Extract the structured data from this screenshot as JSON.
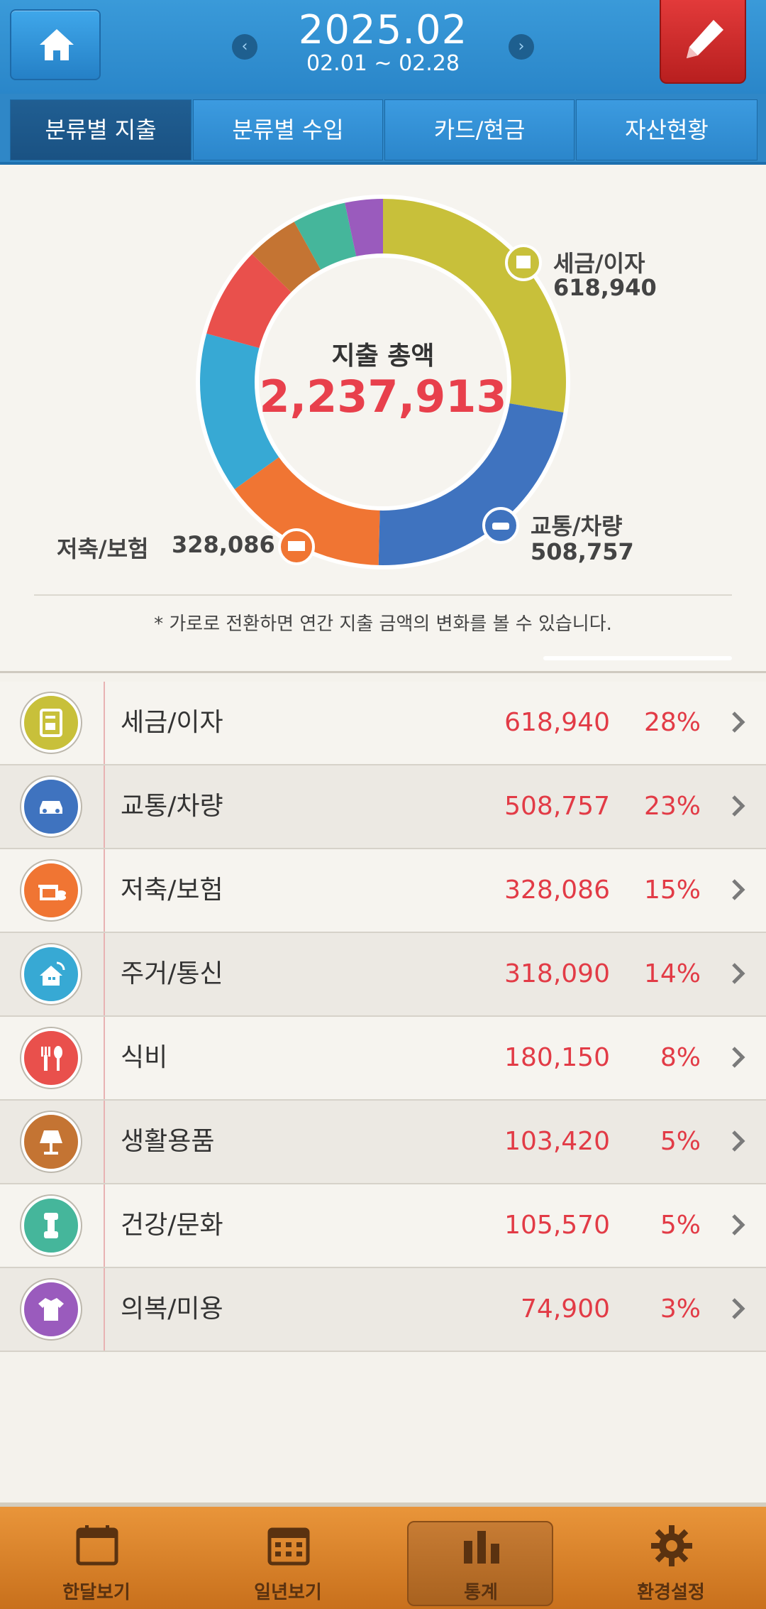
{
  "header": {
    "month": "2025.02",
    "range": "02.01 ~ 02.28",
    "prev_arrow": "‹",
    "next_arrow": "›"
  },
  "tabs": [
    {
      "label": "분류별 지출",
      "active": true
    },
    {
      "label": "분류별 수입",
      "active": false
    },
    {
      "label": "카드/현금",
      "active": false
    },
    {
      "label": "자산현황",
      "active": false
    }
  ],
  "summary": {
    "title": "지출 총액",
    "total": "2,237,913",
    "hint": "* 가로로 전환하면 연간 지출 금액의 변화를 볼 수 있습니다."
  },
  "callouts": [
    {
      "label": "세금/이자",
      "amount": "618,940"
    },
    {
      "label": "교통/차량",
      "amount": "508,757"
    },
    {
      "label": "저축/보험",
      "amount": "328,086"
    }
  ],
  "chart_data": {
    "type": "pie",
    "donut": true,
    "total": 2237913,
    "categories": [
      "세금/이자",
      "교통/차량",
      "저축/보험",
      "주거/통신",
      "식비",
      "생활용품",
      "건강/문화",
      "의복/미용"
    ],
    "values": [
      618940,
      508757,
      328086,
      318090,
      180150,
      103420,
      105570,
      74900
    ],
    "colors": [
      "#c8c03a",
      "#3f73bf",
      "#f07533",
      "#37a9d4",
      "#e9504c",
      "#c47433",
      "#45b69b",
      "#9a5bbd"
    ]
  },
  "rows": [
    {
      "label": "세금/이자",
      "amount": "618,940",
      "pct": "28%",
      "icon": "document-calculator-icon",
      "color": "#c8c03a"
    },
    {
      "label": "교통/차량",
      "amount": "508,757",
      "pct": "23%",
      "icon": "car-icon",
      "color": "#3f73bf"
    },
    {
      "label": "저축/보험",
      "amount": "328,086",
      "pct": "15%",
      "icon": "savings-icon",
      "color": "#f07533"
    },
    {
      "label": "주거/통신",
      "amount": "318,090",
      "pct": "14%",
      "icon": "house-wifi-icon",
      "color": "#37a9d4"
    },
    {
      "label": "식비",
      "amount": "180,150",
      "pct": "8%",
      "icon": "cutlery-icon",
      "color": "#e9504c"
    },
    {
      "label": "생활용품",
      "amount": "103,420",
      "pct": "5%",
      "icon": "lamp-icon",
      "color": "#c47433"
    },
    {
      "label": "건강/문화",
      "amount": "105,570",
      "pct": "5%",
      "icon": "dumbbell-icon",
      "color": "#45b69b"
    },
    {
      "label": "의복/미용",
      "amount": "74,900",
      "pct": "3%",
      "icon": "shirt-icon",
      "color": "#9a5bbd"
    }
  ],
  "bottom_nav": [
    {
      "label": "한달보기",
      "icon": "calendar-month-icon",
      "active": false
    },
    {
      "label": "일년보기",
      "icon": "calendar-year-icon",
      "active": false
    },
    {
      "label": "통계",
      "icon": "bar-chart-icon",
      "active": true
    },
    {
      "label": "환경설정",
      "icon": "gear-icon",
      "active": false
    }
  ]
}
